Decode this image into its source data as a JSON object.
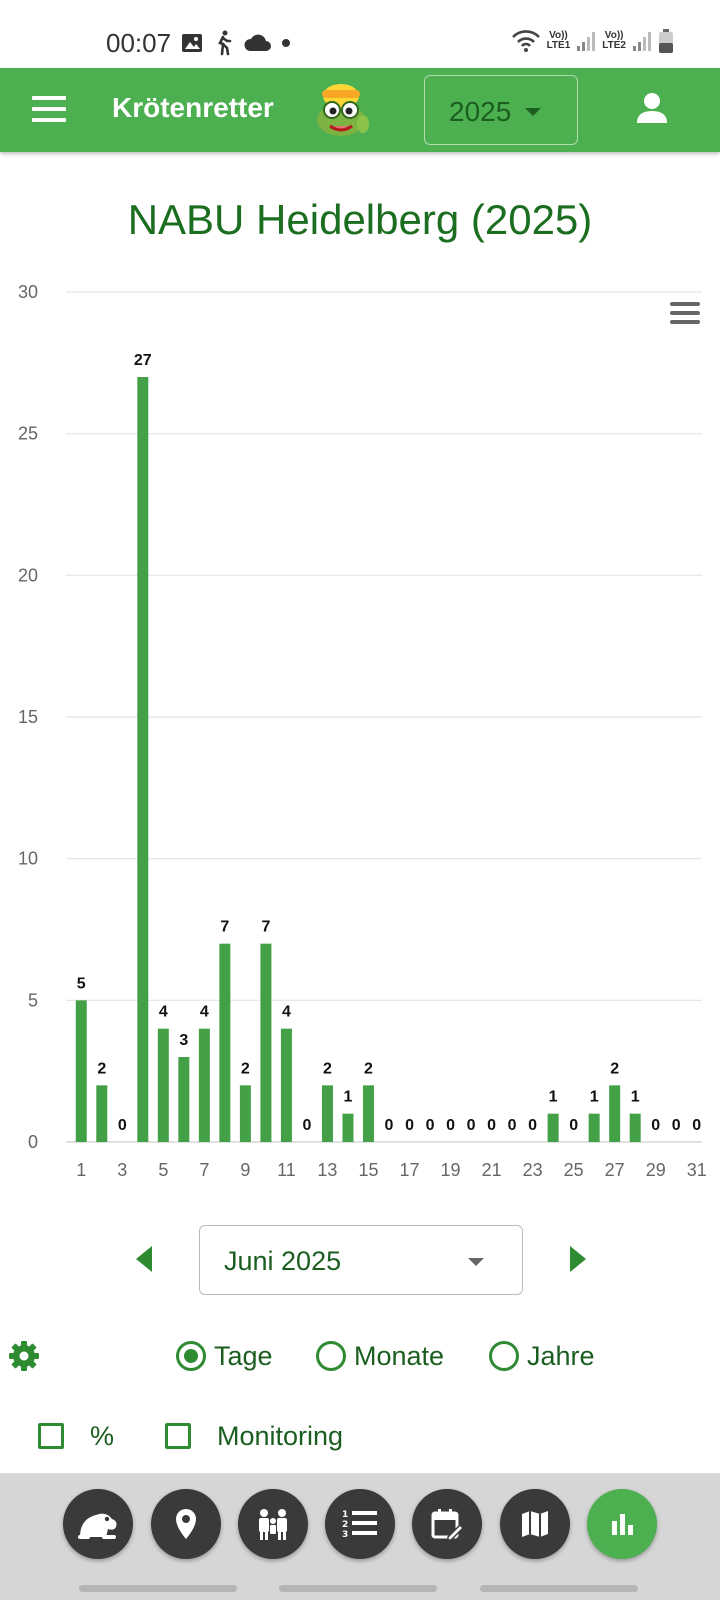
{
  "status_bar": {
    "time": "00:07",
    "network": [
      {
        "top": "Vo))",
        "bottom": "LTE1"
      },
      {
        "top": "Vo))",
        "bottom": "LTE2"
      }
    ]
  },
  "app_bar": {
    "title": "Krötenretter",
    "year": "2025",
    "icons": {
      "menu": "menu-icon",
      "logo": "frog-logo",
      "user": "account-icon"
    }
  },
  "chart": {
    "title": "NABU Heidelberg (2025)",
    "menu_icon": "chart-menu-icon",
    "color": "#43a047"
  },
  "chart_data": {
    "type": "bar",
    "title": "NABU Heidelberg (2025)",
    "xlabel": "",
    "ylabel": "",
    "ylim": [
      0,
      30
    ],
    "y_ticks": [
      0,
      5,
      10,
      15,
      20,
      25,
      30
    ],
    "categories": [
      "1",
      "2",
      "3",
      "4",
      "5",
      "6",
      "7",
      "8",
      "9",
      "10",
      "11",
      "12",
      "13",
      "14",
      "15",
      "16",
      "17",
      "18",
      "19",
      "20",
      "21",
      "22",
      "23",
      "24",
      "25",
      "26",
      "27",
      "28",
      "29",
      "30",
      "31"
    ],
    "x_tick_labels": [
      "1",
      "3",
      "5",
      "7",
      "9",
      "11",
      "13",
      "15",
      "17",
      "19",
      "21",
      "23",
      "25",
      "27",
      "29",
      "31"
    ],
    "values": [
      5,
      2,
      0,
      27,
      4,
      3,
      4,
      7,
      2,
      7,
      4,
      0,
      2,
      1,
      2,
      0,
      0,
      0,
      0,
      0,
      0,
      0,
      0,
      1,
      0,
      1,
      2,
      1,
      0,
      0,
      0
    ],
    "data_labels": true,
    "grid": true,
    "legend": "none"
  },
  "month_nav": {
    "selected": "Juni 2025",
    "prev_icon": "arrow-left-icon",
    "next_icon": "arrow-right-icon"
  },
  "options": {
    "settings_icon": "gear-icon",
    "granularity": [
      {
        "label": "Tage",
        "checked": true
      },
      {
        "label": "Monate",
        "checked": false
      },
      {
        "label": "Jahre",
        "checked": false
      }
    ],
    "checkboxes": [
      {
        "label": "%",
        "checked": false
      },
      {
        "label": "Monitoring",
        "checked": false
      }
    ]
  },
  "bottom_nav": [
    {
      "icon": "toad-icon",
      "active": false
    },
    {
      "icon": "location-pin-icon",
      "active": false
    },
    {
      "icon": "people-icon",
      "active": false
    },
    {
      "icon": "numbered-list-icon",
      "active": false
    },
    {
      "icon": "calendar-edit-icon",
      "active": false
    },
    {
      "icon": "map-icon",
      "active": false
    },
    {
      "icon": "bar-chart-icon",
      "active": true
    }
  ]
}
